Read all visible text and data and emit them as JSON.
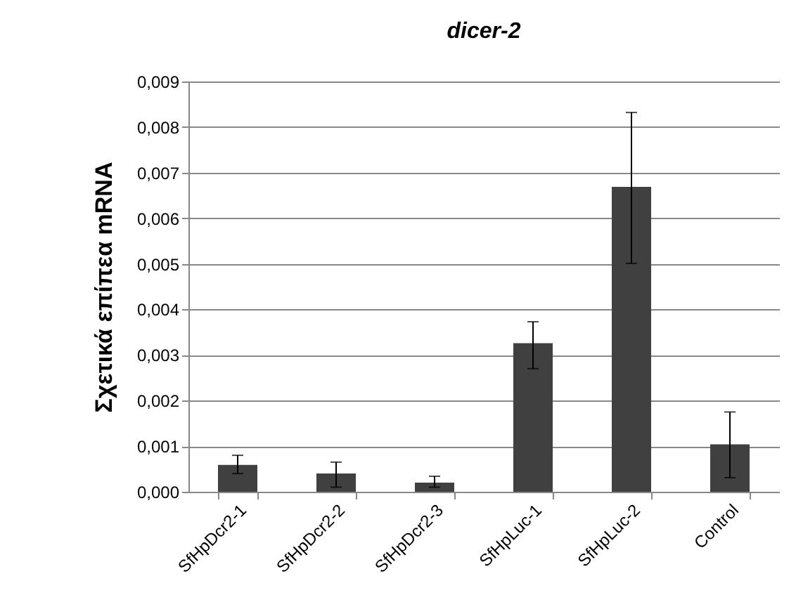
{
  "chart_data": {
    "type": "bar",
    "title": "dicer-2",
    "ylabel": "Σχετικά επίπεα mRNA",
    "categories": [
      "SfHpDcr2-1",
      "SfHpDcr2-2",
      "SfHpDcr2-3",
      "SfHpLuc-1",
      "SfHpLuc-2",
      "Control"
    ],
    "values": [
      0.00059,
      0.0004,
      0.0002,
      0.00326,
      0.00669,
      0.00104
    ],
    "errors": [
      [
        0.0004,
        0.0008
      ],
      [
        0.0001,
        0.00065
      ],
      [
        0.0001,
        0.00034
      ],
      [
        0.0027,
        0.00373
      ],
      [
        0.00501,
        0.00832
      ],
      [
        0.00031,
        0.00175
      ]
    ],
    "color": "#404040",
    "ylim": [
      0,
      0.009
    ],
    "yticks": [
      {
        "value": 0,
        "label": "0,000"
      },
      {
        "value": 0.001,
        "label": "0,001"
      },
      {
        "value": 0.002,
        "label": "0,002"
      },
      {
        "value": 0.003,
        "label": "0,003"
      },
      {
        "value": 0.004,
        "label": "0,004"
      },
      {
        "value": 0.005,
        "label": "0,005"
      },
      {
        "value": 0.006,
        "label": "0,006"
      },
      {
        "value": 0.007,
        "label": "0,007"
      },
      {
        "value": 0.008,
        "label": "0,008"
      },
      {
        "value": 0.009,
        "label": "0,009"
      }
    ],
    "grid": "y"
  }
}
